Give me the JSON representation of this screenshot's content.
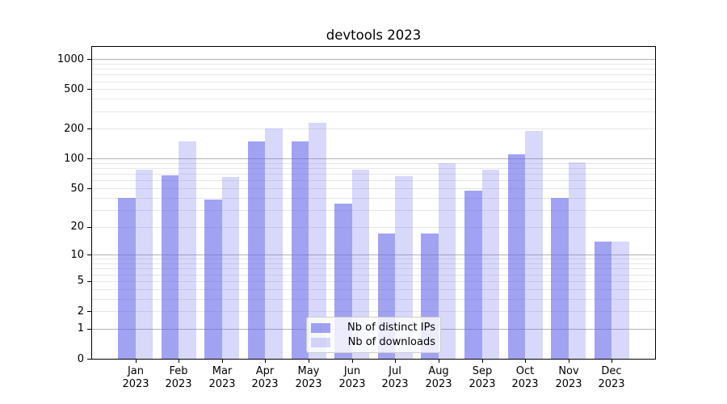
{
  "chart_data": {
    "type": "bar",
    "title": "devtools 2023",
    "categories": [
      "Jan",
      "Feb",
      "Mar",
      "Apr",
      "May",
      "Jun",
      "Jul",
      "Aug",
      "Sep",
      "Oct",
      "Nov",
      "Dec"
    ],
    "x_tick_second_line": "2023",
    "series": [
      {
        "name": "Nb of distinct IPs",
        "color": "rgba(100,100,235,0.6)",
        "values": [
          40,
          68,
          38,
          150,
          150,
          35,
          17,
          17,
          47,
          110,
          40,
          14
        ]
      },
      {
        "name": "Nb of downloads",
        "color": "rgba(100,100,235,0.25)",
        "values": [
          78,
          150,
          65,
          200,
          230,
          77,
          66,
          90,
          78,
          190,
          92,
          14
        ]
      }
    ],
    "yscale": "log1p",
    "ylim": [
      0,
      1330
    ],
    "y_ticks": [
      0,
      1,
      2,
      5,
      10,
      20,
      50,
      100,
      200,
      500,
      1000
    ],
    "grid": {
      "major_values": [
        1,
        10,
        100,
        1000
      ],
      "minor_base_values": [
        1,
        10,
        100
      ],
      "major_color": "#b2b2b2",
      "minor_color": "#e7e7e7"
    },
    "legend": {
      "position": "lower center"
    }
  }
}
